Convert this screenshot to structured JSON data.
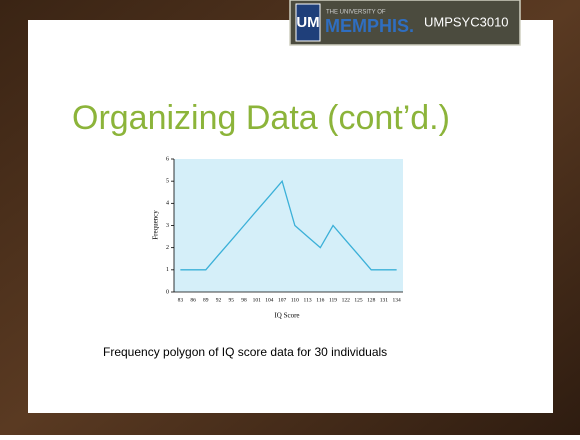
{
  "header": {
    "logo": "UM",
    "university_line": "THE UNIVERSITY OF",
    "university_name": "MEMPHIS.",
    "course": "UMPSYC3010"
  },
  "slide": {
    "title": "Organizing Data (cont’d.)",
    "caption": "Frequency polygon of IQ score data for 30 individuals"
  },
  "chart_data": {
    "type": "line",
    "x_label": "IQ Score",
    "y_label": "Frequency",
    "categories": [
      "83",
      "86",
      "89",
      "92",
      "95",
      "98",
      "101",
      "104",
      "107",
      "110",
      "113",
      "116",
      "119",
      "122",
      "125",
      "128",
      "131",
      "134"
    ],
    "series": [
      {
        "name": "Frequency",
        "color": "#3bb0d8",
        "values": [
          1,
          1,
          1,
          1.67,
          2.33,
          3,
          3.67,
          4.33,
          5,
          3,
          2.5,
          2,
          3,
          2.33,
          1.67,
          1,
          1,
          1
        ]
      }
    ],
    "ylim": [
      0,
      6
    ],
    "yticks": [
      0,
      1,
      2,
      3,
      4,
      5,
      6
    ],
    "background": "#d5eff9"
  }
}
